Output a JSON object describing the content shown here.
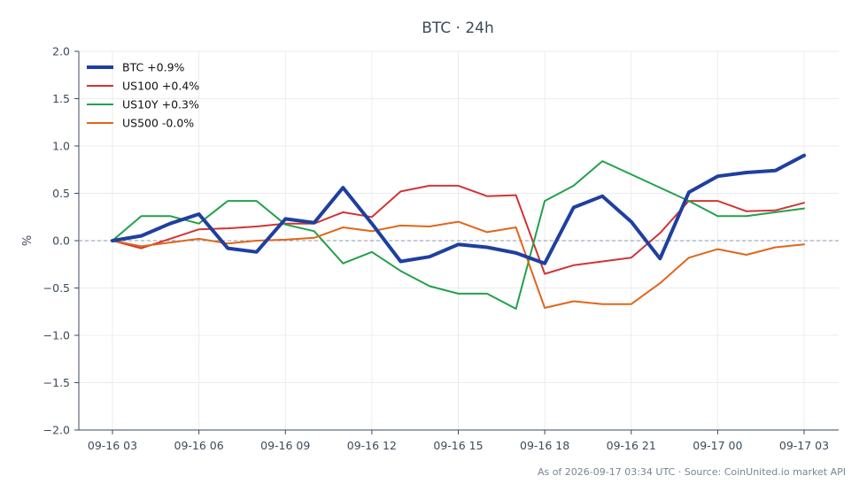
{
  "chart_data": {
    "type": "line",
    "title": "BTC · 24h",
    "xlabel": "",
    "ylabel": "%",
    "x": [
      "09-16 03",
      "09-16 04",
      "09-16 05",
      "09-16 06",
      "09-16 07",
      "09-16 08",
      "09-16 09",
      "09-16 10",
      "09-16 11",
      "09-16 12",
      "09-16 13",
      "09-16 14",
      "09-16 15",
      "09-16 16",
      "09-16 17",
      "09-16 18",
      "09-16 19",
      "09-16 20",
      "09-16 21",
      "09-16 22",
      "09-16 23",
      "09-17 00",
      "09-17 01",
      "09-17 02",
      "09-17 03"
    ],
    "x_ticks": [
      "09-16 03",
      "09-16 06",
      "09-16 09",
      "09-16 12",
      "09-16 15",
      "09-16 18",
      "09-16 21",
      "09-17 00",
      "09-17 03"
    ],
    "ylim": [
      -2.0,
      2.0
    ],
    "y_ticks": [
      "2.0",
      "1.5",
      "1.0",
      "0.5",
      "0.0",
      "−0.5",
      "−1.0",
      "−1.5",
      "−2.0"
    ],
    "y_tick_values": [
      2.0,
      1.5,
      1.0,
      0.5,
      0.0,
      -0.5,
      -1.0,
      -1.5,
      -2.0
    ],
    "grid": true,
    "zero_line": true,
    "legend_position": "top-left",
    "series": [
      {
        "name": "BTC +0.9%",
        "color": "#1f3fa0",
        "line_width": 4,
        "values": [
          0.0,
          0.05,
          0.18,
          0.28,
          -0.08,
          -0.12,
          0.23,
          0.19,
          0.56,
          0.18,
          -0.22,
          -0.17,
          -0.04,
          -0.07,
          -0.13,
          -0.24,
          0.35,
          0.47,
          0.2,
          -0.19,
          0.51,
          0.68,
          0.72,
          0.74,
          0.9
        ]
      },
      {
        "name": "US100 +0.4%",
        "color": "#d03535",
        "line_width": 2,
        "values": [
          0.0,
          -0.08,
          0.02,
          0.12,
          0.13,
          0.15,
          0.18,
          0.18,
          0.3,
          0.25,
          0.52,
          0.58,
          0.58,
          0.47,
          0.48,
          -0.35,
          -0.26,
          -0.22,
          -0.18,
          0.08,
          0.42,
          0.42,
          0.31,
          0.32,
          0.4
        ]
      },
      {
        "name": "US10Y +0.3%",
        "color": "#23a04a",
        "line_width": 2,
        "values": [
          0.0,
          0.26,
          0.26,
          0.18,
          0.42,
          0.42,
          0.17,
          0.1,
          -0.24,
          -0.12,
          -0.32,
          -0.48,
          -0.56,
          -0.56,
          -0.72,
          0.42,
          0.58,
          0.84,
          0.7,
          0.56,
          0.42,
          0.26,
          0.26,
          0.3,
          0.34
        ]
      },
      {
        "name": "US500 -0.0%",
        "color": "#e0661a",
        "line_width": 2,
        "values": [
          0.0,
          -0.06,
          -0.02,
          0.02,
          -0.03,
          0.0,
          0.01,
          0.03,
          0.14,
          0.1,
          0.16,
          0.15,
          0.2,
          0.09,
          0.14,
          -0.71,
          -0.64,
          -0.67,
          -0.67,
          -0.45,
          -0.18,
          -0.09,
          -0.15,
          -0.07,
          -0.04
        ]
      }
    ]
  },
  "footer": {
    "text": "As of 2026-09-17 03:34 UTC · Source: CoinUnited.io market API"
  }
}
